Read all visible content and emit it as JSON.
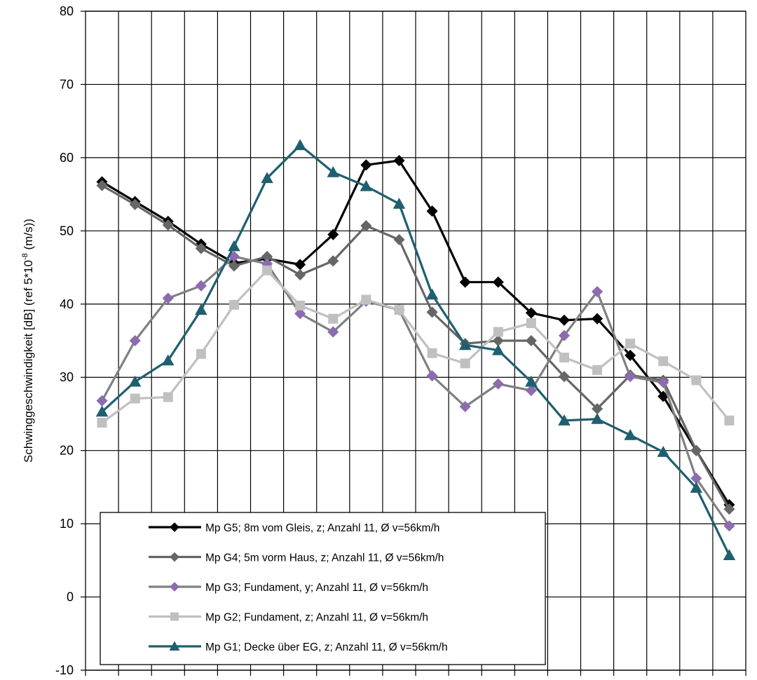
{
  "chart_data": {
    "type": "line",
    "ylabel_main": "Schwinggeschwindigkeit  [dB] (ref 5*10",
    "ylabel_sup": "-8",
    "ylabel_tail": " (m/s))",
    "ylim": [
      -10,
      80
    ],
    "yticks": [
      "-10",
      "0",
      "10",
      "20",
      "30",
      "40",
      "50",
      "60",
      "70",
      "80"
    ],
    "x_count": 20,
    "grid": true,
    "legend_position": "bottom-left",
    "series": [
      {
        "name": "Mp G5; 8m vom Gleis, z; Anzahl 11, Ø v=56km/h",
        "color": "#000000",
        "marker": "diamond",
        "values": [
          56.7,
          54.0,
          51.3,
          48.2,
          45.6,
          46.2,
          45.4,
          49.5,
          59.0,
          59.6,
          52.7,
          43.0,
          43.0,
          38.8,
          37.8,
          38.0,
          33.0,
          27.4,
          20.0,
          12.6
        ]
      },
      {
        "name": "Mp G4; 5m vorm Haus, z; Anzahl 11, Ø v=56km/h",
        "color": "#666666",
        "marker": "diamond",
        "values": [
          56.2,
          53.6,
          50.8,
          47.6,
          45.2,
          46.5,
          44.0,
          45.9,
          50.7,
          48.8,
          38.9,
          34.6,
          35.0,
          35.0,
          30.1,
          25.7,
          30.3,
          29.6,
          20.0,
          12.0
        ]
      },
      {
        "name": "Mp G3; Fundament, y; Anzahl 11, Ø v=56km/h",
        "color": "#808080",
        "marker_color": "#8c6bb1",
        "marker": "diamond",
        "values": [
          26.8,
          35.0,
          40.8,
          42.5,
          46.5,
          45.5,
          38.7,
          36.2,
          40.4,
          39.2,
          30.2,
          26.0,
          29.1,
          28.2,
          35.7,
          41.7,
          30.1,
          29.3,
          16.2,
          9.7
        ]
      },
      {
        "name": "Mp G2; Fundament, z; Anzahl 11, Ø v=56km/h",
        "color": "#c0c0c0",
        "marker": "square",
        "values": [
          23.8,
          27.1,
          27.3,
          33.2,
          39.9,
          44.6,
          39.8,
          38.0,
          40.6,
          39.2,
          33.3,
          31.9,
          36.2,
          37.4,
          32.7,
          31.0,
          34.6,
          32.2,
          29.6,
          24.1
        ]
      },
      {
        "name": "Mp G1; Decke über EG, z; Anzahl 11, Ø v=56km/h",
        "color": "#1f5f6f",
        "marker": "triangle",
        "values": [
          25.3,
          29.4,
          32.3,
          39.2,
          47.9,
          57.2,
          61.7,
          58.0,
          56.1,
          53.7,
          41.3,
          34.4,
          33.7,
          29.4,
          24.1,
          24.3,
          22.1,
          19.8,
          14.9,
          5.7
        ]
      }
    ]
  }
}
